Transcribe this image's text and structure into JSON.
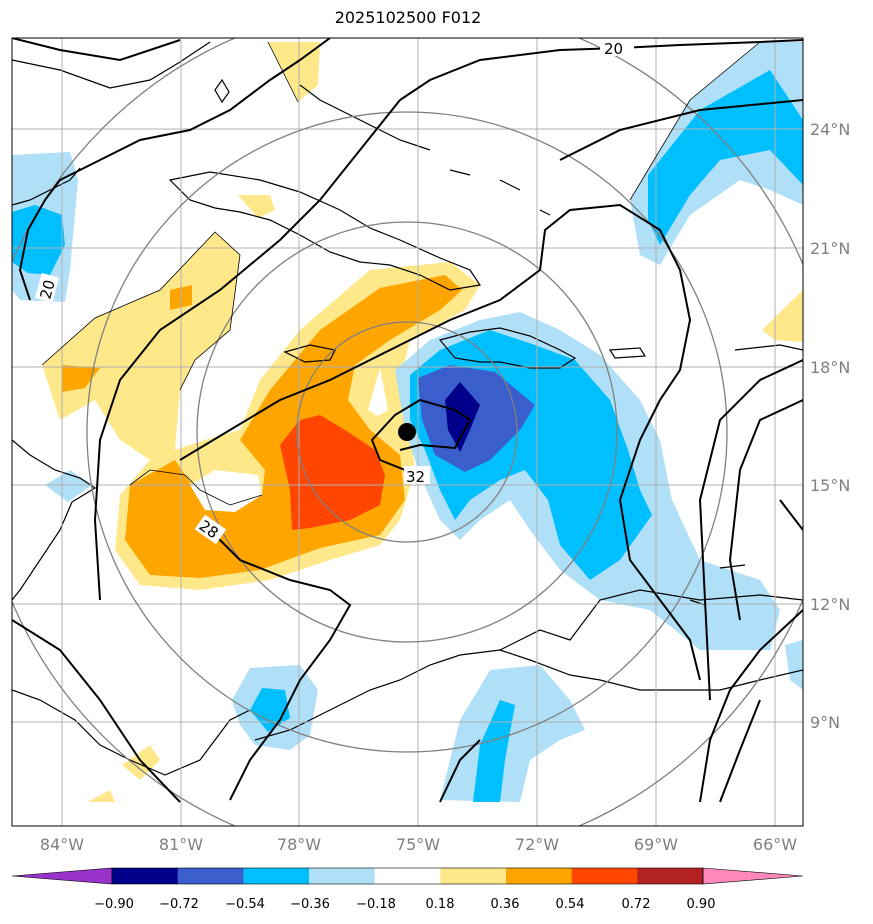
{
  "title": "2025102500 F012",
  "map": {
    "lon_labels": [
      "84°W",
      "81°W",
      "78°W",
      "75°W",
      "72°W",
      "69°W",
      "66°W"
    ],
    "lat_labels": [
      "24°N",
      "21°N",
      "18°N",
      "15°N",
      "12°N",
      "9°N"
    ],
    "contour_labels": [
      "20",
      "20",
      "28",
      "32"
    ],
    "storm_marker": "storm-center"
  },
  "colorbar": {
    "ticks": [
      "−0.90",
      "−0.72",
      "−0.54",
      "−0.36",
      "−0.18",
      "0.18",
      "0.36",
      "0.54",
      "0.72",
      "0.90"
    ],
    "colors": [
      "#9933cc",
      "#00008b",
      "#3a5fcd",
      "#00bfff",
      "#b0e0f8",
      "#ffffff",
      "#ffe88a",
      "#ffa500",
      "#ff4500",
      "#b22222",
      "#ff88bb"
    ]
  },
  "colors": {
    "shade_orange": "#ffa500",
    "shade_red": "#ff4500",
    "shade_yellow": "#ffe88a",
    "shade_cyan": "#00bfff",
    "shade_lightblue": "#b0e0f8",
    "shade_blue": "#3a5fcd",
    "shade_navy": "#00008b"
  }
}
